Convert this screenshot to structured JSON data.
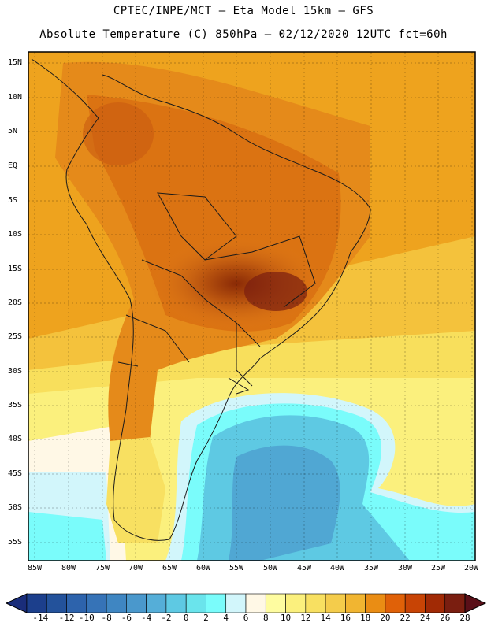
{
  "title_line1": "CPTEC/INPE/MCT –  Eta Model 15km – GFS",
  "title_line2": "Absolute Temperature (C) 850hPa – 02/12/2020 12UTC fct=60h",
  "lat_ticks": [
    "15N",
    "10N",
    "5N",
    "EQ",
    "5S",
    "10S",
    "15S",
    "20S",
    "25S",
    "30S",
    "35S",
    "40S",
    "45S",
    "50S",
    "55S"
  ],
  "lon_ticks": [
    "85W",
    "80W",
    "75W",
    "70W",
    "65W",
    "60W",
    "55W",
    "50W",
    "45W",
    "40W",
    "35W",
    "30W",
    "25W",
    "20W"
  ],
  "colorbar": {
    "labels": [
      "-14",
      "-12",
      "-10",
      "-8",
      "-6",
      "-4",
      "-2",
      "0",
      "2",
      "4",
      "6",
      "8",
      "10",
      "12",
      "14",
      "16",
      "18",
      "20",
      "22",
      "24",
      "26",
      "28"
    ],
    "colors": [
      "#1c3f8c",
      "#23529b",
      "#2d63ac",
      "#3673b7",
      "#3f86c2",
      "#4a98cc",
      "#55aed8",
      "#5ec9e3",
      "#6ae4ec",
      "#7afcfb",
      "#d2f6fb",
      "#fff8e6",
      "#fefca0",
      "#fbf07d",
      "#f8e061",
      "#f4cc4b",
      "#f1b531",
      "#ea8d14",
      "#e06108",
      "#c84405",
      "#a12a05",
      "#7a1e10"
    ],
    "range": [
      -14,
      28
    ],
    "units": "C"
  }
}
